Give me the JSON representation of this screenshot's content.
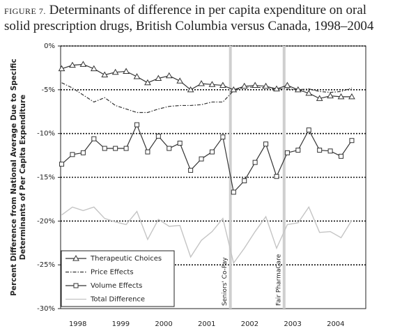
{
  "chart_data": {
    "type": "line",
    "figure_label": "Figure 7.",
    "title": "Determinants of difference in per capita expenditure on oral solid prescription drugs, British Columbia versus Canada, 1998–2004",
    "ylabel": [
      "Percent Difference from National Average Due to Specific",
      "Determinants of Per Capita Expenditure"
    ],
    "x": [
      1998.125,
      1998.375,
      1998.625,
      1998.875,
      1999.125,
      1999.375,
      1999.625,
      1999.875,
      2000.125,
      2000.375,
      2000.625,
      2000.875,
      2001.125,
      2001.375,
      2001.625,
      2001.875,
      2002.125,
      2002.375,
      2002.625,
      2002.875,
      2003.125,
      2003.375,
      2003.625,
      2003.875,
      2004.125,
      2004.375,
      2004.625,
      2004.875
    ],
    "xlim": [
      1998.1,
      2005.2
    ],
    "xticks": [
      {
        "value": 1998.5,
        "label": "1998"
      },
      {
        "value": 1999.5,
        "label": "1999"
      },
      {
        "value": 2000.5,
        "label": "2000"
      },
      {
        "value": 2001.5,
        "label": "2001"
      },
      {
        "value": 2002.5,
        "label": "2002"
      },
      {
        "value": 2003.5,
        "label": "2003"
      },
      {
        "value": 2004.5,
        "label": "2004"
      }
    ],
    "ylim": [
      -30,
      0
    ],
    "yticks": [
      {
        "value": 0,
        "label": "0%"
      },
      {
        "value": -5,
        "label": "-5%"
      },
      {
        "value": -10,
        "label": "-10%"
      },
      {
        "value": -15,
        "label": "-15%"
      },
      {
        "value": -20,
        "label": "-20%"
      },
      {
        "value": -25,
        "label": "-25%"
      },
      {
        "value": -30,
        "label": "-30%"
      }
    ],
    "grid": true,
    "legend": "lower left",
    "annotations": [
      {
        "x": 2002.05,
        "text": "Seniors' Co-Pay"
      },
      {
        "x": 2003.3,
        "text": "Fair PharmaCare"
      }
    ],
    "series": [
      {
        "name": "Therapeutic Choices",
        "color": "#333333",
        "style": "solid",
        "marker": "triangle",
        "values": [
          -2.6,
          -2.2,
          -2.1,
          -2.6,
          -3.3,
          -3.0,
          -2.9,
          -3.5,
          -4.2,
          -3.7,
          -3.4,
          -4.0,
          -5.0,
          -4.3,
          -4.4,
          -4.5,
          -5.0,
          -4.6,
          -4.5,
          -4.6,
          -4.9,
          -4.5,
          -5.0,
          -5.4,
          -6.0,
          -5.7,
          -5.8,
          -5.8
        ]
      },
      {
        "name": "Price Effects",
        "color": "#333333",
        "style": "dashdot",
        "marker": null,
        "values": [
          -4.2,
          -4.8,
          -5.6,
          -6.4,
          -5.9,
          -6.8,
          -7.2,
          -7.6,
          -7.6,
          -7.2,
          -6.9,
          -6.8,
          -6.8,
          -6.7,
          -6.4,
          -6.4,
          -5.1,
          -4.7,
          -4.7,
          -4.8,
          -4.9,
          -4.9,
          -5.0,
          -4.9,
          -5.2,
          -5.3,
          -5.2,
          -4.8
        ]
      },
      {
        "name": "Volume Effects",
        "color": "#333333",
        "style": "solid",
        "marker": "square",
        "values": [
          -13.5,
          -12.4,
          -12.2,
          -10.6,
          -11.7,
          -11.7,
          -11.7,
          -9.0,
          -12.1,
          -10.3,
          -11.7,
          -11.1,
          -14.2,
          -12.9,
          -12.1,
          -10.4,
          -16.7,
          -15.4,
          -13.3,
          -11.2,
          -14.9,
          -12.2,
          -11.9,
          -9.6,
          -11.9,
          -12.0,
          -12.6,
          -10.8
        ]
      },
      {
        "name": "Total Difference",
        "color": "#c4c4c4",
        "style": "solid",
        "marker": null,
        "values": [
          -19.3,
          -18.4,
          -18.8,
          -18.4,
          -19.7,
          -20.1,
          -20.4,
          -18.9,
          -22.1,
          -19.8,
          -20.6,
          -20.5,
          -24.1,
          -22.2,
          -21.2,
          -19.7,
          -24.8,
          -23.1,
          -21.2,
          -19.5,
          -23.1,
          -20.4,
          -20.2,
          -18.4,
          -21.3,
          -21.2,
          -21.9,
          -19.9
        ]
      }
    ]
  }
}
